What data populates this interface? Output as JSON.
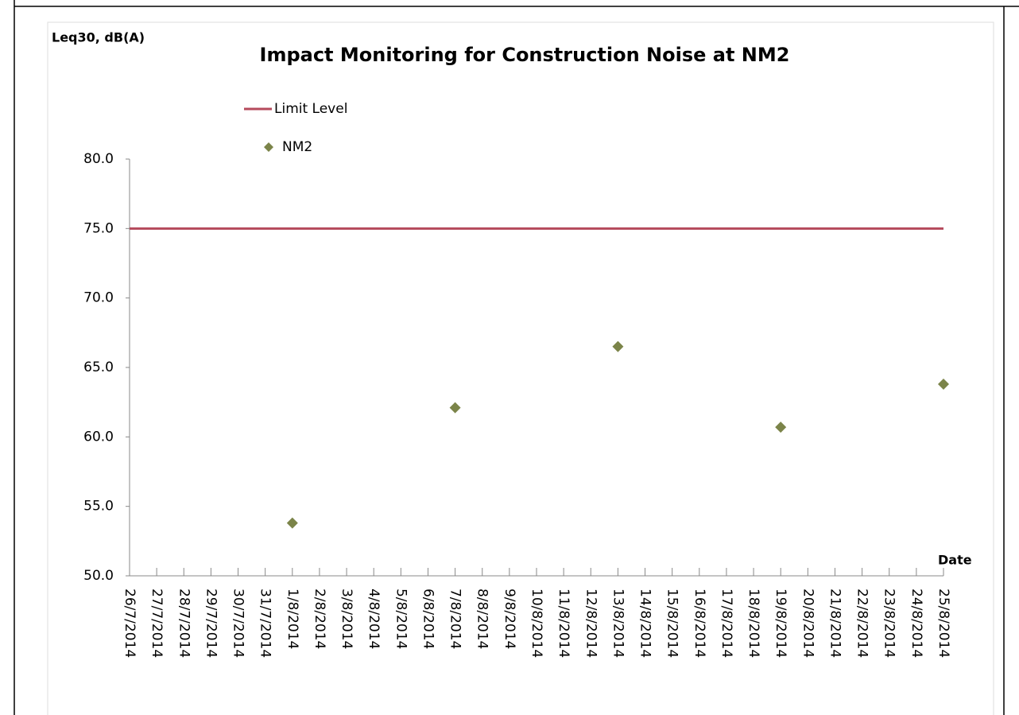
{
  "chart_data": {
    "type": "line",
    "title": "Impact Monitoring for Construction Noise at NM2",
    "y_label": "Leq30, dB(A)",
    "x_label": "Date",
    "categories": [
      "26/7/2014",
      "27/7/2014",
      "28/7/2014",
      "29/7/2014",
      "30/7/2014",
      "31/7/2014",
      "1/8/2014",
      "2/8/2014",
      "3/8/2014",
      "4/8/2014",
      "5/8/2014",
      "6/8/2014",
      "7/8/2014",
      "8/8/2014",
      "9/8/2014",
      "10/8/2014",
      "11/8/2014",
      "12/8/2014",
      "13/8/2014",
      "14/8/2014",
      "15/8/2014",
      "16/8/2014",
      "17/8/2014",
      "18/8/2014",
      "19/8/2014",
      "20/8/2014",
      "21/8/2014",
      "22/8/2014",
      "23/8/2014",
      "24/8/2014",
      "25/8/2014"
    ],
    "series": [
      {
        "name": "Limit Level",
        "color": "#b54a5c",
        "style": "line",
        "values": [
          75,
          75,
          75,
          75,
          75,
          75,
          75,
          75,
          75,
          75,
          75,
          75,
          75,
          75,
          75,
          75,
          75,
          75,
          75,
          75,
          75,
          75,
          75,
          75,
          75,
          75,
          75,
          75,
          75,
          75,
          75
        ]
      },
      {
        "name": "NM2",
        "color": "#7b8449",
        "style": "markers",
        "values": [
          null,
          null,
          null,
          null,
          null,
          null,
          53.8,
          null,
          null,
          null,
          null,
          null,
          62.1,
          null,
          null,
          null,
          null,
          null,
          66.5,
          null,
          null,
          null,
          null,
          null,
          60.7,
          null,
          null,
          null,
          null,
          null,
          63.8
        ]
      }
    ],
    "ylim": [
      50,
      80
    ],
    "yticks": [
      {
        "value": 50,
        "label": "50.0"
      },
      {
        "value": 55,
        "label": "55.0"
      },
      {
        "value": 60,
        "label": "60.0"
      },
      {
        "value": 65,
        "label": "65.0"
      },
      {
        "value": 70,
        "label": "70.0"
      },
      {
        "value": 75,
        "label": "75.0"
      },
      {
        "value": 80,
        "label": "80.0"
      }
    ],
    "grid": false
  }
}
